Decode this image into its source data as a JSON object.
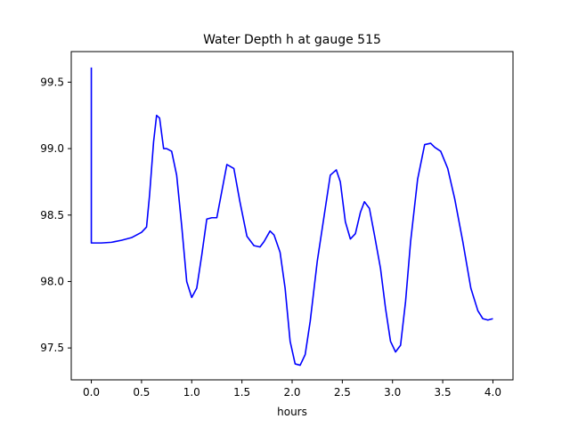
{
  "chart_data": {
    "type": "line",
    "title": "Water Depth h at gauge 515",
    "xlabel": "hours",
    "ylabel": "",
    "xlim": [
      -0.2,
      4.2
    ],
    "ylim": [
      97.26,
      99.73
    ],
    "xticks": [
      0.0,
      0.5,
      1.0,
      1.5,
      2.0,
      2.5,
      3.0,
      3.5,
      4.0
    ],
    "xtick_labels": [
      "0.0",
      "0.5",
      "1.0",
      "1.5",
      "2.0",
      "2.5",
      "3.0",
      "3.5",
      "4.0"
    ],
    "yticks": [
      97.5,
      98.0,
      98.5,
      99.0,
      99.5
    ],
    "ytick_labels": [
      "97.5",
      "98.0",
      "98.5",
      "99.0",
      "99.5"
    ],
    "grid": false,
    "series": [
      {
        "color": "#0000ff",
        "x": [
          0.0,
          0.0,
          0.0,
          0.1,
          0.2,
          0.3,
          0.4,
          0.5,
          0.55,
          0.58,
          0.62,
          0.65,
          0.68,
          0.72,
          0.75,
          0.8,
          0.85,
          0.9,
          0.95,
          1.0,
          1.05,
          1.1,
          1.15,
          1.2,
          1.25,
          1.3,
          1.35,
          1.42,
          1.48,
          1.55,
          1.62,
          1.68,
          1.72,
          1.78,
          1.82,
          1.88,
          1.93,
          1.98,
          2.03,
          2.08,
          2.13,
          2.18,
          2.25,
          2.32,
          2.38,
          2.44,
          2.48,
          2.53,
          2.58,
          2.63,
          2.68,
          2.72,
          2.77,
          2.82,
          2.88,
          2.93,
          2.98,
          3.03,
          3.08,
          3.13,
          3.18,
          3.25,
          3.32,
          3.38,
          3.42,
          3.48,
          3.55,
          3.62,
          3.7,
          3.78,
          3.85,
          3.9,
          3.95,
          4.0
        ],
        "y": [
          99.61,
          99.61,
          98.29,
          98.29,
          98.295,
          98.31,
          98.33,
          98.37,
          98.41,
          98.65,
          99.05,
          99.25,
          99.23,
          99.0,
          99.0,
          98.98,
          98.8,
          98.42,
          98.0,
          97.88,
          97.95,
          98.2,
          98.47,
          98.48,
          98.48,
          98.68,
          98.88,
          98.85,
          98.6,
          98.34,
          98.27,
          98.26,
          98.3,
          98.38,
          98.35,
          98.22,
          97.95,
          97.55,
          97.38,
          97.37,
          97.45,
          97.7,
          98.15,
          98.5,
          98.8,
          98.84,
          98.75,
          98.45,
          98.32,
          98.36,
          98.52,
          98.6,
          98.55,
          98.35,
          98.1,
          97.8,
          97.55,
          97.47,
          97.52,
          97.85,
          98.3,
          98.77,
          99.03,
          99.04,
          99.01,
          98.98,
          98.85,
          98.62,
          98.3,
          97.95,
          97.78,
          97.72,
          97.71,
          97.72
        ]
      }
    ]
  }
}
